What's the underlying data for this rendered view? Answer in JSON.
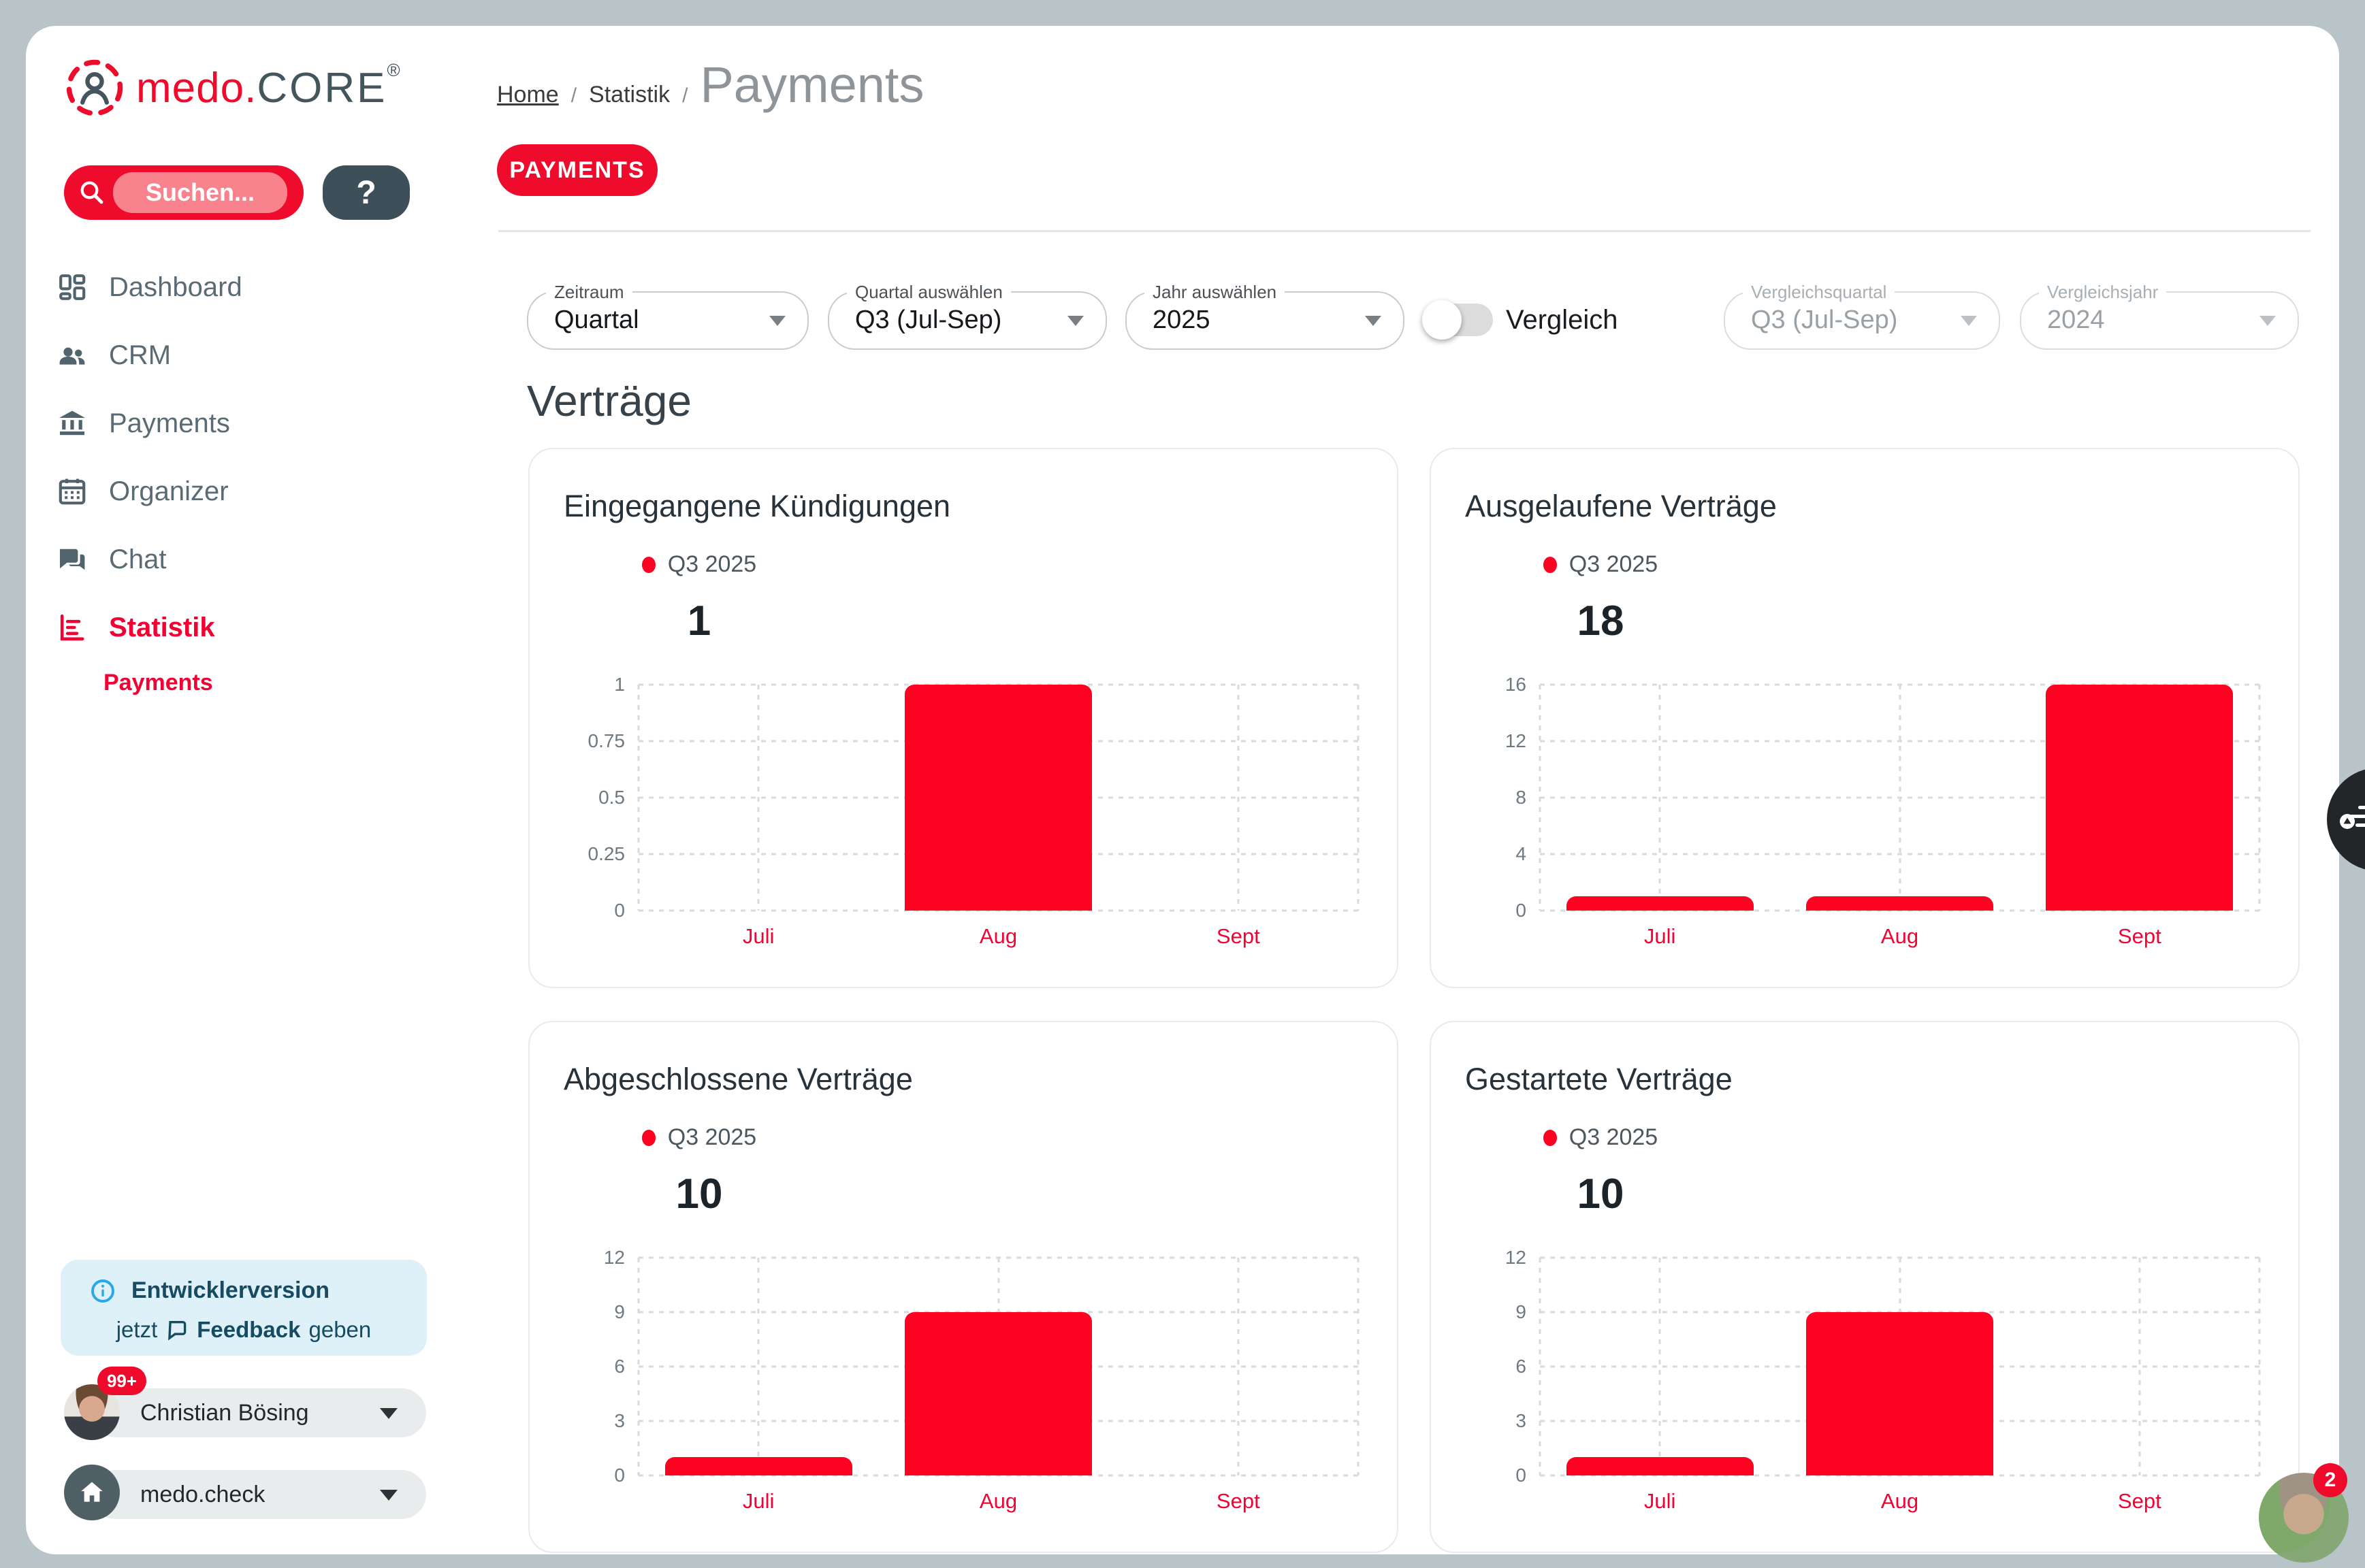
{
  "colors": {
    "brand_red": "#ee0b2b",
    "chart_red": "#fb0321",
    "slate": "#44555d",
    "page_background": "#b9c4c9",
    "info_box_bg": "#def0f8",
    "info_accent": "#2aa7e8"
  },
  "brand": {
    "wordmark_primary": "medo.",
    "wordmark_secondary": "CORE",
    "registered_mark": "®"
  },
  "search": {
    "placeholder": "Suchen...",
    "help_label": "?"
  },
  "sidebar": {
    "items": [
      {
        "label": "Dashboard",
        "active": false
      },
      {
        "label": "CRM",
        "active": false
      },
      {
        "label": "Payments",
        "active": false
      },
      {
        "label": "Organizer",
        "active": false
      },
      {
        "label": "Chat",
        "active": false
      },
      {
        "label": "Statistik",
        "active": true
      }
    ],
    "sub_item": "Payments"
  },
  "breadcrumb": {
    "home": "Home",
    "separator": "/",
    "section": "Statistik",
    "current": "Payments"
  },
  "page": {
    "tab_label": "PAYMENTS",
    "section_title": "Verträge"
  },
  "filters": {
    "zeitraum": {
      "label": "Zeitraum",
      "value": "Quartal"
    },
    "quartal": {
      "label": "Quartal auswählen",
      "value": "Q3 (Jul-Sep)"
    },
    "jahr": {
      "label": "Jahr auswählen",
      "value": "2025"
    },
    "vergleich_label": "Vergleich",
    "vergleich_enabled": false,
    "vergleichsquartal": {
      "label": "Vergleichsquartal",
      "value": "Q3 (Jul-Sep)",
      "disabled": true
    },
    "vergleichsjahr": {
      "label": "Vergleichsjahr",
      "value": "2024",
      "disabled": true
    }
  },
  "chart_data": {
    "bar_color": "#fb0321",
    "charts": [
      {
        "type": "bar",
        "title": "Eingegangene Kündigungen",
        "legend": "Q3 2025",
        "total": "1",
        "categories": [
          "Juli",
          "Aug",
          "Sept"
        ],
        "values": [
          0,
          1,
          0
        ],
        "yticks": [
          "1",
          "0.75",
          "0.5",
          "0.25",
          "0"
        ],
        "max": 1,
        "grid": "dashed",
        "legend_position": "top-left"
      },
      {
        "type": "bar",
        "title": "Ausgelaufene Verträge",
        "legend": "Q3 2025",
        "total": "18",
        "categories": [
          "Juli",
          "Aug",
          "Sept"
        ],
        "values": [
          1,
          1,
          16
        ],
        "yticks": [
          "16",
          "12",
          "8",
          "4",
          "0"
        ],
        "max": 16,
        "grid": "dashed",
        "legend_position": "top-left"
      },
      {
        "type": "bar",
        "title": "Abgeschlossene Verträge",
        "legend": "Q3 2025",
        "total": "10",
        "categories": [
          "Juli",
          "Aug",
          "Sept"
        ],
        "values": [
          1,
          9,
          0
        ],
        "yticks": [
          "12",
          "9",
          "6",
          "3",
          "0"
        ],
        "max": 12,
        "grid": "dashed",
        "legend_position": "top-left"
      },
      {
        "type": "bar",
        "title": "Gestartete Verträge",
        "legend": "Q3 2025",
        "total": "10",
        "categories": [
          "Juli",
          "Aug",
          "Sept"
        ],
        "values": [
          1,
          9,
          0
        ],
        "yticks": [
          "12",
          "9",
          "6",
          "3",
          "0"
        ],
        "max": 12,
        "grid": "dashed",
        "legend_position": "top-left"
      }
    ]
  },
  "footer": {
    "banner": {
      "title": "Entwicklerversion",
      "line2_prefix": "jetzt",
      "line2_bold": "Feedback",
      "line2_suffix": "geben"
    },
    "user": {
      "name": "Christian Bösing",
      "badge": "99+"
    },
    "workspace": {
      "name": "medo.check"
    },
    "corner_badge": "2"
  }
}
